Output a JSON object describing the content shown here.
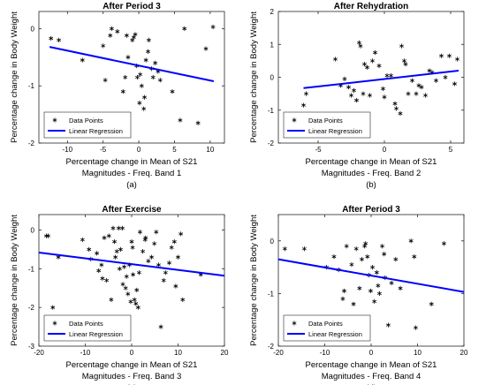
{
  "chart_data": [
    {
      "type": "scatter",
      "title": "After Period 3",
      "xlabel": "Percentage change in Mean of S21",
      "xlabel2": "Magnitudes - Freq. Band 1",
      "ylabel": "Percentage change in Body Weight",
      "caption": "(a)",
      "xlim": [
        -14,
        12
      ],
      "ylim": [
        -2,
        0.3
      ],
      "xticks": [
        -10,
        -5,
        0,
        5,
        10
      ],
      "yticks": [
        -2,
        -1,
        0
      ],
      "legend_position": "bottom-left",
      "series": [
        {
          "name": "Data Points",
          "x": [
            -12.3,
            -11.2,
            -7.9,
            -4.7,
            -4.0,
            -3.8,
            -2.2,
            -1.9,
            -1.7,
            -1.5,
            -0.9,
            -0.5,
            -0.2,
            0.1,
            0.2,
            0.4,
            0.7,
            1.0,
            1.4,
            1.8,
            2.3,
            2.7,
            3.0,
            4.7,
            5.8,
            6.4,
            8.3,
            9.4,
            10.4,
            -0.7,
            -0.3,
            0.8,
            1.3,
            2.0,
            -3.0,
            -5.0
          ],
          "y": [
            -0.17,
            -0.2,
            -0.55,
            -0.9,
            -0.12,
            0.0,
            -1.1,
            -0.85,
            -0.12,
            -0.5,
            -0.2,
            -0.1,
            -0.85,
            -1.3,
            -0.8,
            -1.0,
            -1.4,
            -0.55,
            -0.2,
            -0.7,
            -0.6,
            -0.75,
            -0.9,
            -1.1,
            -1.6,
            0.0,
            -1.65,
            -0.35,
            0.03,
            -0.15,
            -0.65,
            -1.2,
            -0.4,
            -0.85,
            -0.05,
            -0.3
          ]
        }
      ],
      "regression": {
        "name": "Linear Regression",
        "x": [
          -12.5,
          10.5
        ],
        "y": [
          -0.32,
          -0.92
        ]
      }
    },
    {
      "type": "scatter",
      "title": "After Rehydration",
      "xlabel": "Percentage change in Mean of S21",
      "xlabel2": "Magnitudes - Freq. Band 2",
      "ylabel": "Percentage change in Body Weight",
      "caption": "(b)",
      "xlim": [
        -8,
        6
      ],
      "ylim": [
        -2,
        2
      ],
      "xticks": [
        -5,
        0,
        5
      ],
      "yticks": [
        -2,
        -1,
        0,
        1,
        2
      ],
      "legend_position": "bottom-left",
      "series": [
        {
          "name": "Data Points",
          "x": [
            -6.1,
            -5.9,
            -3.7,
            -3.3,
            -3.0,
            -2.5,
            -2.3,
            -2.1,
            -1.9,
            -1.8,
            -1.5,
            -1.3,
            -1.1,
            -0.9,
            -0.7,
            -0.4,
            -0.1,
            0.2,
            0.5,
            0.8,
            1.2,
            1.3,
            1.5,
            1.6,
            1.8,
            2.1,
            2.4,
            2.8,
            3.4,
            3.6,
            3.9,
            4.3,
            4.6,
            4.9,
            5.3,
            5.5,
            -2.7,
            -1.6,
            0.0,
            0.9,
            2.6,
            3.1
          ],
          "y": [
            -0.85,
            -0.5,
            0.55,
            -0.25,
            -0.05,
            -0.55,
            -0.4,
            -0.7,
            1.05,
            0.95,
            0.4,
            0.3,
            -0.55,
            0.5,
            0.75,
            0.35,
            -0.35,
            0.05,
            0.05,
            -0.8,
            -1.1,
            0.95,
            0.5,
            0.4,
            -0.5,
            -0.1,
            -0.5,
            -0.3,
            0.2,
            0.15,
            -0.1,
            0.65,
            0.0,
            0.65,
            -0.2,
            0.55,
            -0.3,
            -0.5,
            -0.6,
            -0.95,
            -0.25,
            -0.55
          ]
        }
      ],
      "regression": {
        "name": "Linear Regression",
        "x": [
          -6.1,
          5.6
        ],
        "y": [
          -0.33,
          0.2
        ]
      }
    },
    {
      "type": "scatter",
      "title": "After Exercise",
      "xlabel": "Percentage change in Mean of S21",
      "xlabel2": "Magnitudes - Freq. Band 3",
      "ylabel": "Percentage change in Body Weight",
      "caption": "(c)",
      "xlim": [
        -20,
        20
      ],
      "ylim": [
        -3,
        0.4
      ],
      "xticks": [
        -20,
        -10,
        0,
        10,
        20
      ],
      "yticks": [
        -3,
        -2,
        -1,
        0
      ],
      "legend_position": "bottom-left",
      "series": [
        {
          "name": "Data Points",
          "x": [
            -18.4,
            -18.0,
            -17.0,
            -15.8,
            -10.6,
            -9.2,
            -8.8,
            -7.5,
            -7.1,
            -6.5,
            -6.3,
            -5.9,
            -5.4,
            -4.9,
            -4.4,
            -4.0,
            -3.7,
            -3.2,
            -2.8,
            -2.4,
            -2.0,
            -1.6,
            -1.3,
            -1.1,
            -0.8,
            -0.5,
            -0.2,
            0.0,
            0.3,
            0.6,
            0.9,
            1.1,
            1.4,
            1.8,
            2.4,
            3.0,
            3.6,
            4.3,
            4.9,
            5.3,
            5.8,
            6.3,
            6.9,
            7.3,
            8.1,
            8.6,
            9.2,
            9.5,
            10.0,
            10.6,
            11.0,
            14.9,
            -3.5,
            -2.6,
            -1.9,
            0.2,
            1.6,
            2.9
          ],
          "y": [
            -0.15,
            -0.15,
            -2.0,
            -0.7,
            -0.25,
            -0.5,
            -0.75,
            -0.6,
            -1.05,
            -0.9,
            -1.25,
            -0.2,
            -1.3,
            -0.15,
            -1.8,
            0.05,
            -0.3,
            -0.55,
            0.05,
            -0.5,
            0.05,
            -0.95,
            -1.5,
            -1.2,
            -1.65,
            -0.9,
            -1.85,
            -0.3,
            -1.15,
            -1.8,
            -1.9,
            -1.55,
            -2.0,
            -0.05,
            -0.55,
            -0.2,
            -0.8,
            -0.7,
            -0.35,
            -0.05,
            -0.9,
            -2.5,
            -1.3,
            -1.1,
            -0.85,
            -0.45,
            -0.3,
            -1.45,
            -0.7,
            -0.1,
            -1.8,
            -1.15,
            -0.7,
            -1.0,
            -1.4,
            -0.45,
            -1.1,
            -0.25
          ]
        }
      ],
      "regression": {
        "name": "Linear Regression",
        "x": [
          -20,
          20
        ],
        "y": [
          -0.58,
          -1.18
        ]
      }
    },
    {
      "type": "scatter",
      "title": "After Period 3",
      "xlabel": "Percentage change in Mean of S21",
      "xlabel2": "Magnitudes - Freq. Band 4",
      "ylabel": "Percentage change in Body Weight",
      "caption": "(d)",
      "xlim": [
        -20,
        20
      ],
      "ylim": [
        -2,
        0.5
      ],
      "xticks": [
        -20,
        -10,
        0,
        10,
        20
      ],
      "yticks": [
        -2,
        -1,
        0
      ],
      "legend_position": "bottom-left",
      "series": [
        {
          "name": "Data Points",
          "x": [
            -18.6,
            -14.4,
            -9.6,
            -7.0,
            -6.1,
            -5.8,
            -5.3,
            -4.2,
            -3.8,
            -3.2,
            -2.5,
            -2.0,
            -1.4,
            -1.2,
            -0.8,
            -0.1,
            0.3,
            0.7,
            1.2,
            1.8,
            2.4,
            3.0,
            3.7,
            4.4,
            5.3,
            6.3,
            8.6,
            9.3,
            9.6,
            13.0,
            15.7,
            -8.0,
            1.5,
            2.8,
            -0.5
          ],
          "y": [
            -0.15,
            -0.15,
            -0.5,
            -0.55,
            -1.1,
            -0.95,
            -0.1,
            -0.45,
            -1.2,
            -0.15,
            -0.9,
            -0.35,
            -0.1,
            -0.05,
            -0.3,
            -0.95,
            -0.5,
            -1.15,
            -0.6,
            -1.0,
            -0.1,
            -0.7,
            -1.6,
            -0.8,
            -0.35,
            -0.9,
            -0.0,
            -0.3,
            -1.65,
            -1.2,
            -0.05,
            -0.3,
            -0.85,
            -0.25,
            -0.65
          ]
        }
      ],
      "regression": {
        "name": "Linear Regression",
        "x": [
          -20,
          20
        ],
        "y": [
          -0.35,
          -0.97
        ]
      }
    }
  ]
}
